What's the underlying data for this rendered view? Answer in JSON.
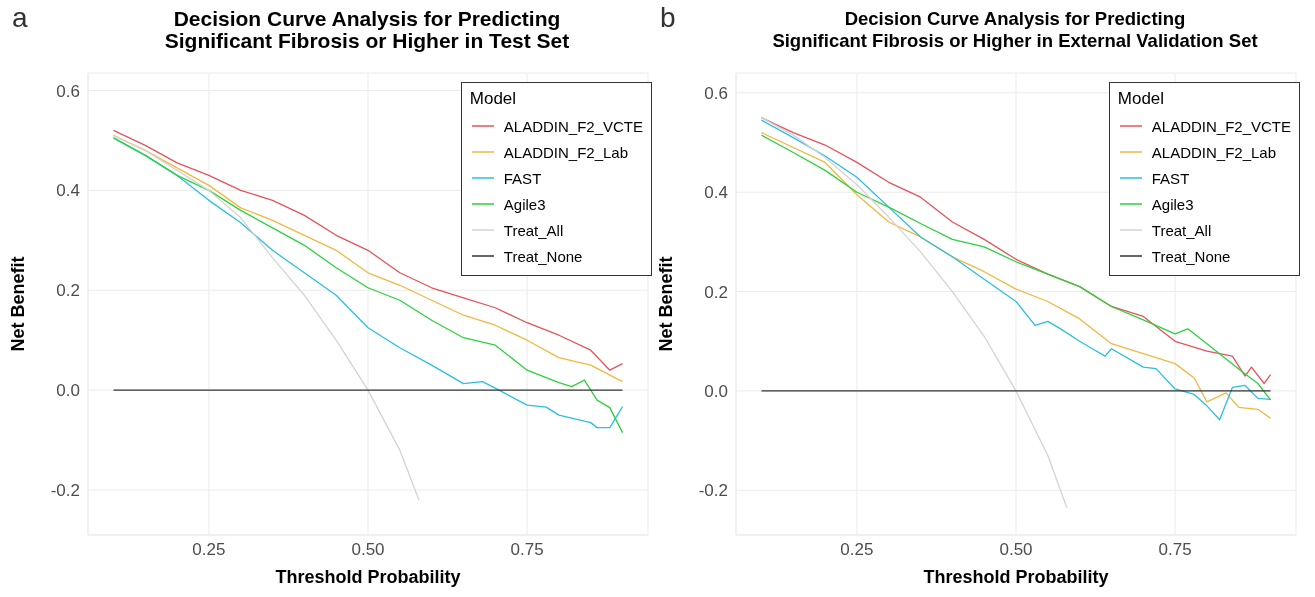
{
  "chart_data": [
    {
      "type": "line",
      "title": "Decision Curve Analysis for Predicting\nSignificant Fibrosis or Higher in Test Set",
      "xlabel": "Threshold Probability",
      "ylabel": "Net Benefit",
      "legend_title": "Model",
      "annotations": [
        "a"
      ],
      "xlim": [
        0.06,
        0.94
      ],
      "ylim": [
        -0.29,
        0.635
      ],
      "xticks": [
        {
          "value": 0.25,
          "label": "0.25"
        },
        {
          "value": 0.5,
          "label": "0.50"
        },
        {
          "value": 0.75,
          "label": "0.75"
        }
      ],
      "yticks": [
        -0.2,
        {
          "value": 0,
          "label": "0.0"
        },
        0.2,
        0.4,
        0.6
      ],
      "grid": true,
      "legend": "top right",
      "marker": "none",
      "line_style": "solid",
      "series": [
        {
          "name": "ALADDIN_F2_VCTE",
          "color": "#e4545c",
          "x": [
            0.1,
            0.15,
            0.2,
            0.25,
            0.3,
            0.35,
            0.4,
            0.45,
            0.5,
            0.55,
            0.6,
            0.65,
            0.7,
            0.75,
            0.8,
            0.85,
            0.88,
            0.9
          ],
          "values": [
            0.52,
            0.49,
            0.455,
            0.43,
            0.4,
            0.38,
            0.35,
            0.31,
            0.28,
            0.235,
            0.205,
            0.185,
            0.165,
            0.135,
            0.11,
            0.08,
            0.04,
            0.053
          ]
        },
        {
          "name": "ALADDIN_F2_Lab",
          "color": "#f0b840",
          "x": [
            0.1,
            0.15,
            0.2,
            0.25,
            0.3,
            0.35,
            0.4,
            0.45,
            0.5,
            0.55,
            0.6,
            0.65,
            0.7,
            0.75,
            0.8,
            0.85,
            0.9
          ],
          "values": [
            0.51,
            0.48,
            0.445,
            0.41,
            0.365,
            0.34,
            0.31,
            0.28,
            0.235,
            0.21,
            0.18,
            0.15,
            0.13,
            0.1,
            0.065,
            0.05,
            0.017
          ]
        },
        {
          "name": "FAST",
          "color": "#2bbfe0",
          "x": [
            0.1,
            0.15,
            0.2,
            0.25,
            0.3,
            0.35,
            0.4,
            0.45,
            0.5,
            0.55,
            0.6,
            0.65,
            0.68,
            0.7,
            0.75,
            0.78,
            0.8,
            0.85,
            0.86,
            0.88,
            0.9
          ],
          "values": [
            0.505,
            0.47,
            0.43,
            0.38,
            0.335,
            0.28,
            0.235,
            0.19,
            0.125,
            0.085,
            0.05,
            0.013,
            0.017,
            0.004,
            -0.03,
            -0.034,
            -0.05,
            -0.065,
            -0.075,
            -0.075,
            -0.033
          ]
        },
        {
          "name": "Agile3",
          "color": "#2ed13f",
          "x": [
            0.1,
            0.15,
            0.2,
            0.25,
            0.3,
            0.35,
            0.4,
            0.45,
            0.5,
            0.55,
            0.6,
            0.65,
            0.7,
            0.75,
            0.8,
            0.82,
            0.84,
            0.86,
            0.88,
            0.9
          ],
          "values": [
            0.505,
            0.47,
            0.43,
            0.4,
            0.36,
            0.325,
            0.29,
            0.245,
            0.205,
            0.18,
            0.14,
            0.105,
            0.09,
            0.04,
            0.015,
            0.007,
            0.02,
            -0.02,
            -0.035,
            -0.085
          ]
        },
        {
          "name": "Treat_All",
          "color": "#d3d3d3",
          "x": [
            0.1,
            0.15,
            0.2,
            0.25,
            0.3,
            0.35,
            0.4,
            0.45,
            0.5,
            0.55,
            0.58
          ],
          "values": [
            0.51,
            0.48,
            0.44,
            0.4,
            0.345,
            0.265,
            0.19,
            0.1,
            0,
            -0.12,
            -0.22
          ]
        },
        {
          "name": "Treat_None",
          "color": "#333333",
          "x": [
            0.1,
            0.9
          ],
          "values": [
            0,
            0
          ]
        }
      ]
    },
    {
      "type": "line",
      "title": "Decision Curve Analysis for Predicting\nSignificant Fibrosis or Higher in External Validation Set",
      "xlabel": "Threshold Probability",
      "ylabel": "Net Benefit",
      "legend_title": "Model",
      "annotations": [
        "b"
      ],
      "xlim": [
        0.06,
        0.94
      ],
      "ylim": [
        -0.29,
        0.64
      ],
      "xticks": [
        {
          "value": 0.25,
          "label": "0.25"
        },
        {
          "value": 0.5,
          "label": "0.50"
        },
        {
          "value": 0.75,
          "label": "0.75"
        }
      ],
      "yticks": [
        -0.2,
        {
          "value": 0,
          "label": "0.0"
        },
        0.2,
        0.4,
        0.6
      ],
      "grid": true,
      "legend": "top right",
      "marker": "none",
      "line_style": "solid",
      "series": [
        {
          "name": "ALADDIN_F2_VCTE",
          "color": "#e4545c",
          "x": [
            0.1,
            0.15,
            0.2,
            0.25,
            0.3,
            0.35,
            0.4,
            0.45,
            0.5,
            0.55,
            0.6,
            0.65,
            0.7,
            0.75,
            0.8,
            0.84,
            0.86,
            0.87,
            0.89,
            0.9
          ],
          "values": [
            0.55,
            0.52,
            0.495,
            0.46,
            0.42,
            0.39,
            0.34,
            0.305,
            0.265,
            0.235,
            0.21,
            0.17,
            0.15,
            0.1,
            0.08,
            0.07,
            0.03,
            0.048,
            0.015,
            0.033
          ]
        },
        {
          "name": "ALADDIN_F2_Lab",
          "color": "#f0b840",
          "x": [
            0.1,
            0.15,
            0.2,
            0.25,
            0.3,
            0.35,
            0.4,
            0.45,
            0.5,
            0.55,
            0.6,
            0.65,
            0.7,
            0.75,
            0.78,
            0.8,
            0.83,
            0.85,
            0.88,
            0.9
          ],
          "values": [
            0.52,
            0.49,
            0.46,
            0.395,
            0.34,
            0.31,
            0.27,
            0.24,
            0.205,
            0.18,
            0.145,
            0.095,
            0.075,
            0.055,
            0.026,
            -0.022,
            -0.004,
            -0.033,
            -0.037,
            -0.055
          ]
        },
        {
          "name": "FAST",
          "color": "#2bbfe0",
          "x": [
            0.1,
            0.15,
            0.2,
            0.25,
            0.3,
            0.35,
            0.4,
            0.45,
            0.5,
            0.53,
            0.55,
            0.57,
            0.6,
            0.62,
            0.64,
            0.65,
            0.7,
            0.72,
            0.75,
            0.78,
            0.8,
            0.82,
            0.84,
            0.86,
            0.88,
            0.9
          ],
          "values": [
            0.545,
            0.51,
            0.473,
            0.43,
            0.37,
            0.31,
            0.27,
            0.225,
            0.18,
            0.132,
            0.14,
            0.125,
            0.1,
            0.085,
            0.07,
            0.085,
            0.048,
            0.045,
            0.004,
            -0.007,
            -0.03,
            -0.058,
            0.007,
            0.011,
            -0.015,
            -0.017
          ]
        },
        {
          "name": "Agile3",
          "color": "#2ed13f",
          "x": [
            0.1,
            0.15,
            0.2,
            0.25,
            0.3,
            0.35,
            0.4,
            0.45,
            0.5,
            0.55,
            0.6,
            0.65,
            0.7,
            0.75,
            0.77,
            0.8,
            0.85,
            0.88,
            0.9
          ],
          "values": [
            0.515,
            0.48,
            0.444,
            0.4,
            0.37,
            0.337,
            0.305,
            0.29,
            0.26,
            0.235,
            0.21,
            0.17,
            0.143,
            0.115,
            0.125,
            0.095,
            0.044,
            0.015,
            -0.018
          ]
        },
        {
          "name": "Treat_All",
          "color": "#d3d3d3",
          "x": [
            0.1,
            0.15,
            0.2,
            0.25,
            0.3,
            0.35,
            0.4,
            0.45,
            0.5,
            0.55,
            0.58
          ],
          "values": [
            0.55,
            0.515,
            0.47,
            0.415,
            0.35,
            0.28,
            0.2,
            0.11,
            0,
            -0.13,
            -0.235
          ]
        },
        {
          "name": "Treat_None",
          "color": "#333333",
          "x": [
            0.1,
            0.9
          ],
          "values": [
            0,
            0
          ]
        }
      ]
    }
  ]
}
